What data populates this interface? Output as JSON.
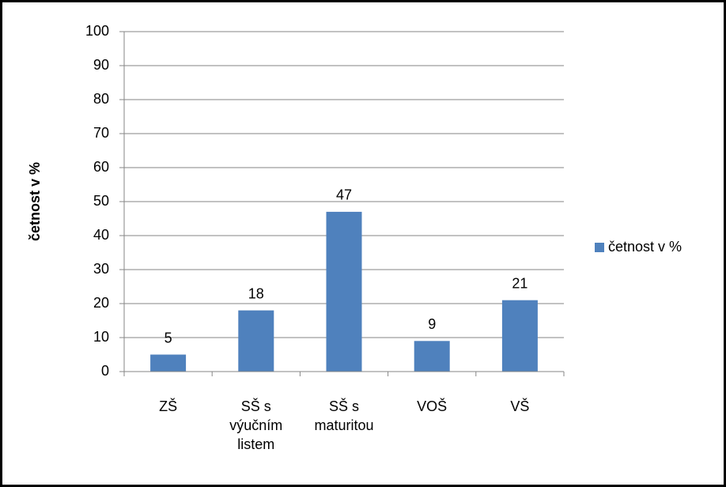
{
  "chart_data": {
    "type": "bar",
    "y_label": "četnost v %",
    "categories": [
      "ZŠ",
      "SŠ s výučním listem",
      "SŠ s maturitou",
      "VOŠ",
      "VŠ"
    ],
    "series": [
      {
        "name": "četnost v %",
        "color": "#4f81bd",
        "values": [
          5,
          18,
          47,
          9,
          21
        ]
      }
    ],
    "ylim": [
      0,
      100
    ],
    "yticks": [
      0,
      10,
      20,
      30,
      40,
      50,
      60,
      70,
      80,
      90,
      100
    ],
    "grid": true,
    "legend": "right"
  }
}
